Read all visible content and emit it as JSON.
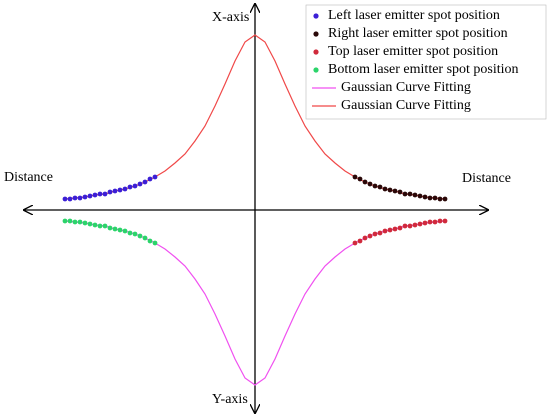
{
  "chart_data": {
    "type": "scatter",
    "axis_labels": [
      "X-axis",
      "Y-axis",
      "Distance",
      "Distance"
    ],
    "xlim": [
      -23,
      23
    ],
    "ylim": [
      -20,
      20
    ],
    "series": [
      {
        "name": "Left laser emitter spot position",
        "color": "#3b1fd6",
        "kind": "scatter",
        "x": [
          -19,
          -18.5,
          -18,
          -17.5,
          -17,
          -16.5,
          -16,
          -15.5,
          -15,
          -14.5,
          -14,
          -13.5,
          -13,
          -12.5,
          -12,
          -11.5,
          -11,
          -10.5,
          -10
        ],
        "values": [
          1.1,
          1.1,
          1.2,
          1.2,
          1.3,
          1.4,
          1.5,
          1.6,
          1.6,
          1.8,
          1.9,
          2.0,
          2.1,
          2.3,
          2.4,
          2.6,
          2.8,
          3.1,
          3.3
        ]
      },
      {
        "name": "Right laser emitter spot position",
        "color": "#2a0808",
        "kind": "scatter",
        "x": [
          10,
          10.5,
          11,
          11.5,
          12,
          12.5,
          13,
          13.5,
          14,
          14.5,
          15,
          15.5,
          16,
          16.5,
          17,
          17.5,
          18,
          18.5,
          19
        ],
        "values": [
          3.3,
          3.1,
          2.8,
          2.6,
          2.4,
          2.3,
          2.1,
          2.0,
          1.9,
          1.8,
          1.6,
          1.6,
          1.5,
          1.4,
          1.3,
          1.2,
          1.2,
          1.1,
          1.1
        ]
      },
      {
        "name": "Top laser emitter spot position",
        "color": "#d02a3c",
        "kind": "scatter",
        "x": [
          10,
          10.5,
          11,
          11.5,
          12,
          12.5,
          13,
          13.5,
          14,
          14.5,
          15,
          15.5,
          16,
          16.5,
          17,
          17.5,
          18,
          18.5,
          19
        ],
        "values": [
          -3.3,
          -3.1,
          -2.8,
          -2.6,
          -2.4,
          -2.3,
          -2.1,
          -2.0,
          -1.9,
          -1.8,
          -1.6,
          -1.6,
          -1.5,
          -1.4,
          -1.3,
          -1.2,
          -1.2,
          -1.1,
          -1.1
        ]
      },
      {
        "name": "Bottom laser emitter spot position",
        "color": "#2bd46a",
        "kind": "scatter",
        "x": [
          -19,
          -18.5,
          -18,
          -17.5,
          -17,
          -16.5,
          -16,
          -15.5,
          -15,
          -14.5,
          -14,
          -13.5,
          -13,
          -12.5,
          -12,
          -11.5,
          -11,
          -10.5,
          -10
        ],
        "values": [
          -1.1,
          -1.1,
          -1.2,
          -1.2,
          -1.3,
          -1.4,
          -1.5,
          -1.6,
          -1.6,
          -1.8,
          -1.9,
          -2.0,
          -2.1,
          -2.3,
          -2.4,
          -2.6,
          -2.8,
          -3.1,
          -3.3
        ]
      },
      {
        "name": "Gaussian Curve Fitting",
        "color": "#f050f0",
        "kind": "line",
        "x": [
          -19,
          -18,
          -17,
          -16,
          -15,
          -14,
          -13,
          -12,
          -11,
          -10,
          -9,
          -8,
          -7,
          -6,
          -5,
          -4,
          -3,
          -2,
          -1,
          0,
          1,
          2,
          3,
          4,
          5,
          6,
          7,
          8,
          9,
          10,
          11,
          12,
          13,
          14,
          15,
          16,
          17,
          18,
          19
        ],
        "values": [
          -1.1,
          -1.2,
          -1.3,
          -1.5,
          -1.6,
          -1.9,
          -2.1,
          -2.4,
          -2.8,
          -3.3,
          -3.9,
          -4.7,
          -5.6,
          -6.9,
          -8.4,
          -10.4,
          -12.6,
          -14.9,
          -16.8,
          -17.5,
          -16.8,
          -14.9,
          -12.6,
          -10.4,
          -8.4,
          -6.9,
          -5.6,
          -4.7,
          -3.9,
          -3.3,
          -2.8,
          -2.4,
          -2.1,
          -1.9,
          -1.6,
          -1.5,
          -1.3,
          -1.2,
          -1.1
        ]
      },
      {
        "name": "Gaussian Curve Fitting",
        "color": "#f04848",
        "kind": "line",
        "x": [
          -19,
          -18,
          -17,
          -16,
          -15,
          -14,
          -13,
          -12,
          -11,
          -10,
          -9,
          -8,
          -7,
          -6,
          -5,
          -4,
          -3,
          -2,
          -1,
          0,
          1,
          2,
          3,
          4,
          5,
          6,
          7,
          8,
          9,
          10,
          11,
          12,
          13,
          14,
          15,
          16,
          17,
          18,
          19
        ],
        "values": [
          1.1,
          1.2,
          1.3,
          1.5,
          1.6,
          1.9,
          2.1,
          2.4,
          2.8,
          3.3,
          3.9,
          4.7,
          5.6,
          6.9,
          8.4,
          10.4,
          12.6,
          14.9,
          16.8,
          17.5,
          16.8,
          14.9,
          12.6,
          10.4,
          8.4,
          6.9,
          5.6,
          4.7,
          3.9,
          3.3,
          2.8,
          2.4,
          2.1,
          1.9,
          1.6,
          1.5,
          1.3,
          1.2,
          1.1
        ]
      }
    ]
  }
}
